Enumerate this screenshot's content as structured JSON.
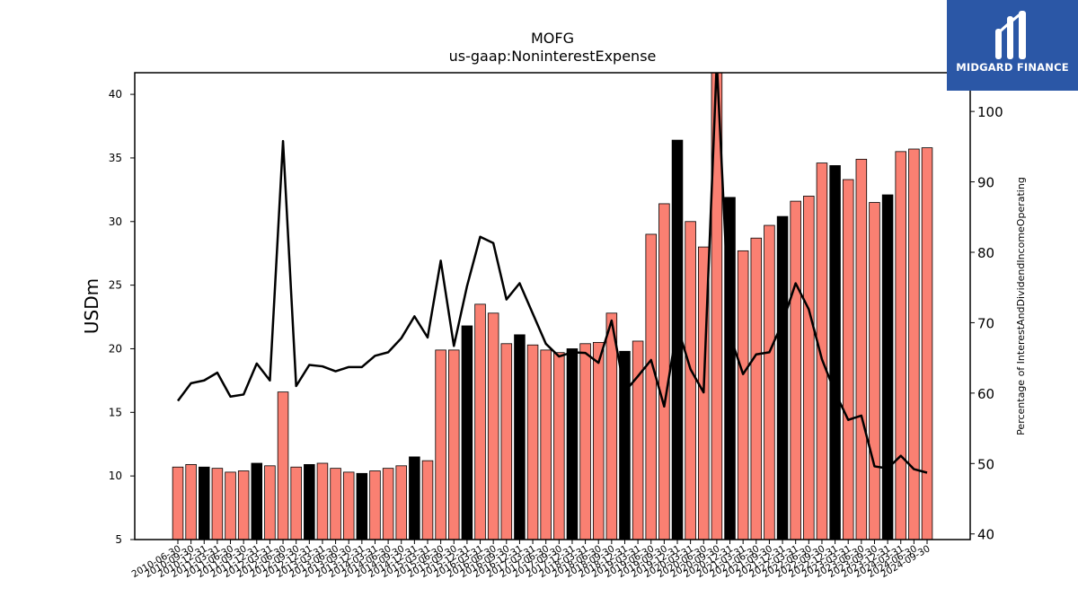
{
  "logo": {
    "text": "MIDGARD FINANCE",
    "background": "#2b57a6"
  },
  "colors": {
    "bar_default": "#fa8072",
    "bar_highlight": "#000000",
    "line": "#000000"
  },
  "chart_data": {
    "type": "bar",
    "title": "MOFG",
    "subtitle": "us-gaap:NoninterestExpense",
    "ylabel": "USDm",
    "y2label": "Percentage of InterestAndDividendIncomeOperating",
    "ylim": [
      5,
      41.7
    ],
    "y2lim": [
      39.2,
      105.5
    ],
    "yticks": [
      5,
      10,
      15,
      20,
      25,
      30,
      35,
      40
    ],
    "y2ticks": [
      40,
      50,
      60,
      70,
      80,
      90,
      100
    ],
    "grid": false,
    "legend": "none",
    "categories": [
      "2010-06-30",
      "2010-09-30",
      "2010-12-31",
      "2011-03-31",
      "2011-06-30",
      "2011-09-30",
      "2011-12-31",
      "2012-03-31",
      "2012-06-30",
      "2012-09-30",
      "2012-12-31",
      "2013-03-31",
      "2013-06-30",
      "2013-09-30",
      "2013-12-31",
      "2014-03-31",
      "2014-06-30",
      "2014-09-30",
      "2014-12-31",
      "2015-03-31",
      "2015-06-30",
      "2015-09-30",
      "2015-12-31",
      "2016-03-31",
      "2016-06-30",
      "2016-09-30",
      "2016-12-31",
      "2017-03-31",
      "2017-06-30",
      "2017-09-30",
      "2017-12-31",
      "2018-03-31",
      "2018-06-30",
      "2018-09-30",
      "2018-12-31",
      "2019-03-31",
      "2019-06-30",
      "2019-09-30",
      "2019-12-31",
      "2020-03-31",
      "2020-06-30",
      "2020-09-30",
      "2020-12-31",
      "2021-03-31",
      "2021-06-30",
      "2021-09-30",
      "2021-12-31",
      "2022-03-31",
      "2022-06-30",
      "2022-09-30",
      "2022-12-31",
      "2023-03-31",
      "2023-06-30",
      "2023-09-30",
      "2023-12-31",
      "2024-03-31",
      "2024-06-30",
      "2024-09-30"
    ],
    "series": [
      {
        "kind": "bar",
        "axis": "left",
        "values": [
          10.7,
          10.9,
          10.7,
          10.6,
          10.3,
          10.4,
          11.0,
          10.8,
          16.6,
          10.7,
          10.9,
          11.0,
          10.6,
          10.3,
          10.2,
          10.4,
          10.6,
          10.8,
          11.5,
          11.2,
          19.9,
          19.9,
          21.8,
          23.5,
          22.8,
          20.4,
          21.1,
          20.3,
          19.9,
          19.7,
          20.0,
          20.4,
          20.5,
          22.8,
          19.8,
          20.6,
          29.0,
          31.4,
          36.4,
          30.0,
          28.0,
          43.0,
          31.9,
          27.7,
          28.7,
          29.7,
          30.4,
          31.6,
          32.0,
          34.6,
          34.4,
          33.3,
          34.9,
          31.5,
          32.1,
          35.5,
          35.7,
          35.8
        ],
        "highlight": [
          false,
          false,
          true,
          false,
          false,
          false,
          true,
          false,
          false,
          false,
          true,
          false,
          false,
          false,
          true,
          false,
          false,
          false,
          true,
          false,
          false,
          false,
          true,
          false,
          false,
          false,
          true,
          false,
          false,
          false,
          true,
          false,
          false,
          false,
          true,
          false,
          false,
          false,
          true,
          false,
          false,
          false,
          true,
          false,
          false,
          false,
          true,
          false,
          false,
          false,
          true,
          false,
          false,
          false,
          true,
          false,
          false,
          false
        ]
      },
      {
        "kind": "line",
        "axis": "right",
        "values": [
          58.9,
          61.4,
          61.8,
          62.9,
          59.5,
          59.8,
          64.2,
          61.8,
          95.8,
          61.0,
          64.0,
          63.8,
          63.1,
          63.7,
          63.7,
          65.3,
          65.8,
          67.8,
          70.9,
          67.9,
          78.8,
          66.7,
          75.2,
          82.2,
          81.3,
          73.3,
          75.6,
          71.3,
          67.0,
          65.2,
          65.8,
          65.7,
          64.3,
          70.3,
          60.2,
          62.4,
          64.7,
          58.1,
          69.5,
          63.4,
          60.1,
          107.0,
          68.2,
          62.7,
          65.5,
          65.8,
          70.0,
          75.6,
          71.9,
          64.8,
          60.1,
          56.2,
          56.8,
          49.6,
          49.3,
          51.1,
          49.2,
          48.7
        ]
      }
    ]
  }
}
